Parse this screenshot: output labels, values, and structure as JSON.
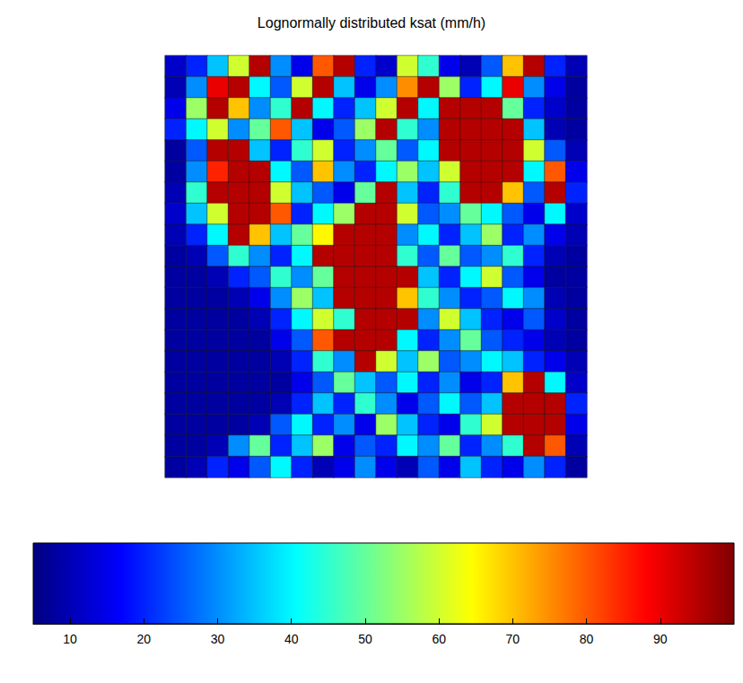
{
  "chart_data": {
    "type": "heatmap",
    "title": "Lognormally distributed ksat (mm/h)",
    "tick_labels": false,
    "cells": [
      [
        12,
        20,
        35,
        60,
        95,
        30,
        15,
        80,
        95,
        20,
        12,
        60,
        45,
        15,
        10,
        25,
        70,
        95,
        20,
        10
      ],
      [
        10,
        30,
        90,
        95,
        40,
        25,
        60,
        95,
        35,
        15,
        30,
        75,
        95,
        55,
        20,
        40,
        90,
        30,
        15,
        8
      ],
      [
        15,
        55,
        95,
        70,
        30,
        45,
        95,
        40,
        20,
        35,
        60,
        95,
        40,
        95,
        95,
        95,
        50,
        20,
        12,
        8
      ],
      [
        20,
        40,
        60,
        30,
        50,
        80,
        35,
        15,
        25,
        55,
        95,
        45,
        30,
        95,
        95,
        95,
        95,
        35,
        10,
        8
      ],
      [
        8,
        25,
        95,
        95,
        35,
        20,
        45,
        60,
        20,
        30,
        50,
        25,
        40,
        95,
        95,
        95,
        95,
        60,
        25,
        10
      ],
      [
        8,
        30,
        85,
        95,
        95,
        40,
        25,
        70,
        30,
        20,
        40,
        55,
        35,
        60,
        95,
        95,
        95,
        40,
        80,
        15
      ],
      [
        10,
        45,
        95,
        95,
        95,
        60,
        35,
        25,
        15,
        50,
        95,
        35,
        20,
        45,
        95,
        95,
        70,
        25,
        95,
        20
      ],
      [
        12,
        35,
        60,
        95,
        95,
        80,
        20,
        40,
        55,
        95,
        95,
        60,
        25,
        30,
        50,
        40,
        25,
        15,
        40,
        12
      ],
      [
        10,
        20,
        40,
        95,
        70,
        35,
        50,
        65,
        95,
        95,
        95,
        30,
        40,
        20,
        35,
        55,
        20,
        30,
        15,
        10
      ],
      [
        8,
        10,
        25,
        45,
        30,
        20,
        40,
        95,
        95,
        95,
        95,
        45,
        25,
        50,
        25,
        30,
        45,
        20,
        10,
        8
      ],
      [
        8,
        8,
        10,
        20,
        25,
        45,
        30,
        50,
        95,
        95,
        95,
        95,
        35,
        20,
        40,
        60,
        25,
        15,
        8,
        8
      ],
      [
        8,
        8,
        8,
        10,
        15,
        30,
        55,
        35,
        95,
        95,
        95,
        70,
        45,
        30,
        20,
        25,
        40,
        30,
        10,
        8
      ],
      [
        8,
        8,
        8,
        8,
        10,
        20,
        40,
        60,
        45,
        95,
        95,
        95,
        30,
        60,
        35,
        20,
        15,
        25,
        12,
        8
      ],
      [
        8,
        8,
        8,
        8,
        8,
        15,
        25,
        80,
        95,
        95,
        95,
        40,
        20,
        30,
        50,
        25,
        20,
        15,
        10,
        8
      ],
      [
        8,
        8,
        8,
        8,
        8,
        10,
        20,
        45,
        30,
        95,
        60,
        35,
        55,
        25,
        30,
        40,
        35,
        20,
        15,
        10
      ],
      [
        8,
        8,
        8,
        8,
        8,
        8,
        15,
        25,
        50,
        35,
        25,
        40,
        20,
        30,
        15,
        20,
        70,
        95,
        40,
        12
      ],
      [
        8,
        8,
        8,
        8,
        8,
        10,
        20,
        35,
        20,
        45,
        30,
        15,
        25,
        40,
        25,
        35,
        95,
        95,
        95,
        20
      ],
      [
        8,
        8,
        8,
        8,
        10,
        25,
        40,
        20,
        30,
        15,
        55,
        35,
        20,
        15,
        45,
        60,
        95,
        95,
        95,
        15
      ],
      [
        8,
        8,
        10,
        30,
        50,
        20,
        35,
        55,
        15,
        25,
        20,
        40,
        30,
        50,
        20,
        30,
        45,
        95,
        80,
        10
      ],
      [
        8,
        10,
        20,
        15,
        25,
        40,
        20,
        10,
        15,
        30,
        15,
        10,
        25,
        15,
        35,
        20,
        15,
        30,
        20,
        8
      ]
    ],
    "colorbar": {
      "range": [
        5,
        100
      ],
      "ticks": [
        10,
        20,
        30,
        40,
        50,
        60,
        70,
        80,
        90
      ]
    }
  }
}
